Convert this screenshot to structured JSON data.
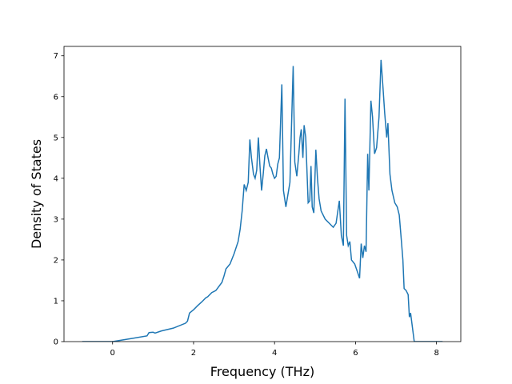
{
  "chart_data": {
    "type": "line",
    "x_label": "Frequency (THz)",
    "y_label": "Density of States",
    "x": [
      -0.75,
      0,
      0.5,
      0.85,
      0.9,
      1.0,
      1.05,
      1.2,
      1.5,
      1.8,
      1.85,
      1.9,
      2.0,
      2.1,
      2.2,
      2.3,
      2.35,
      2.45,
      2.55,
      2.7,
      2.75,
      2.8,
      2.9,
      3.0,
      3.1,
      3.15,
      3.2,
      3.25,
      3.3,
      3.35,
      3.39,
      3.43,
      3.48,
      3.52,
      3.56,
      3.6,
      3.64,
      3.68,
      3.72,
      3.76,
      3.8,
      3.84,
      3.88,
      3.92,
      3.96,
      4.0,
      4.04,
      4.08,
      4.12,
      4.18,
      4.22,
      4.28,
      4.33,
      4.38,
      4.46,
      4.5,
      4.55,
      4.6,
      4.63,
      4.66,
      4.7,
      4.73,
      4.77,
      4.83,
      4.87,
      4.9,
      4.93,
      4.97,
      5.02,
      5.06,
      5.1,
      5.15,
      5.25,
      5.35,
      5.45,
      5.52,
      5.6,
      5.65,
      5.7,
      5.74,
      5.78,
      5.82,
      5.86,
      5.9,
      5.98,
      6.05,
      6.1,
      6.14,
      6.18,
      6.22,
      6.26,
      6.3,
      6.33,
      6.38,
      6.42,
      6.47,
      6.52,
      6.58,
      6.63,
      6.68,
      6.72,
      6.77,
      6.8,
      6.85,
      6.9,
      6.97,
      7.03,
      7.08,
      7.13,
      7.17,
      7.2,
      7.25,
      7.3,
      7.33,
      7.36,
      7.45,
      8.15
    ],
    "values": [
      0,
      0,
      0.08,
      0.14,
      0.22,
      0.23,
      0.21,
      0.26,
      0.33,
      0.45,
      0.5,
      0.7,
      0.78,
      0.88,
      0.97,
      1.07,
      1.1,
      1.2,
      1.25,
      1.45,
      1.6,
      1.78,
      1.9,
      2.15,
      2.45,
      2.75,
      3.2,
      3.85,
      3.7,
      3.9,
      4.95,
      4.5,
      4.1,
      4.0,
      4.2,
      5.0,
      4.3,
      3.7,
      4.1,
      4.55,
      4.72,
      4.5,
      4.3,
      4.25,
      4.1,
      4.0,
      4.05,
      4.35,
      4.5,
      6.3,
      3.7,
      3.3,
      3.6,
      3.9,
      6.75,
      4.4,
      4.05,
      4.6,
      5.0,
      5.2,
      4.5,
      5.3,
      5.0,
      3.4,
      3.45,
      4.3,
      3.3,
      3.15,
      4.7,
      4.0,
      3.5,
      3.2,
      3.0,
      2.9,
      2.8,
      2.9,
      3.45,
      2.6,
      2.35,
      5.95,
      2.6,
      2.35,
      2.45,
      2.0,
      1.9,
      1.7,
      1.55,
      2.4,
      2.05,
      2.35,
      2.2,
      4.6,
      3.7,
      5.9,
      5.5,
      4.6,
      4.75,
      5.5,
      6.9,
      6.2,
      5.6,
      5.0,
      5.35,
      4.1,
      3.7,
      3.4,
      3.3,
      3.1,
      2.5,
      2.0,
      1.3,
      1.25,
      1.15,
      0.6,
      0.7,
      0,
      0
    ],
    "color": "#1f77b4",
    "xlim": [
      -1.2,
      8.6
    ],
    "ylim": [
      0,
      7.23
    ],
    "xticks": [
      0,
      2,
      4,
      6,
      8
    ],
    "yticks": [
      0,
      1,
      2,
      3,
      4,
      5,
      6,
      7
    ]
  }
}
